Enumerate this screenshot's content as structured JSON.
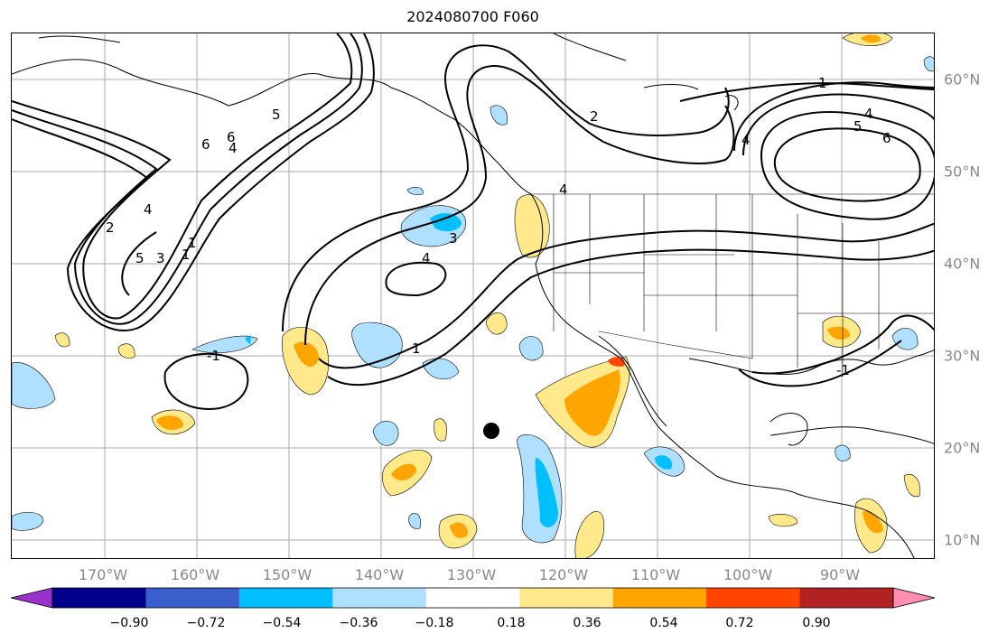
{
  "title": "2024080700 F060",
  "lon_labels": [
    "170°W",
    "160°W",
    "150°W",
    "140°W",
    "130°W",
    "120°W",
    "110°W",
    "100°W",
    "90°W"
  ],
  "lat_labels": [
    "60°N",
    "50°N",
    "40°N",
    "30°N",
    "20°N",
    "10°N"
  ],
  "colorbar": {
    "ticks": [
      "−0.90",
      "−0.72",
      "−0.54",
      "−0.36",
      "−0.18",
      "0.18",
      "0.36",
      "0.54",
      "0.72",
      "0.90"
    ],
    "colors": [
      "#9932cc",
      "#00008b",
      "#3a5fcd",
      "#00bfff",
      "#b0e0ff",
      "#ffffff",
      "#ffe98a",
      "#ffa500",
      "#ff4500",
      "#b22222",
      "#ff8fb0"
    ]
  },
  "contour_labels": {
    "c_a": "2",
    "c_b": "1",
    "c_c": "6",
    "c_d": "4",
    "c_e": "6",
    "c_f": "4",
    "c_g": "5",
    "c_h": "2",
    "c_i": "4",
    "c_j": "5",
    "c_k": "3",
    "c_l": "1",
    "c_m": "3",
    "c_n": "4",
    "c_o": "1",
    "c_p": "-1",
    "c_q": "1",
    "c_r": "4",
    "c_s": "5",
    "c_t": "6",
    "c_u": "4",
    "c_v": "-1"
  },
  "point_marker": "black-dot"
}
